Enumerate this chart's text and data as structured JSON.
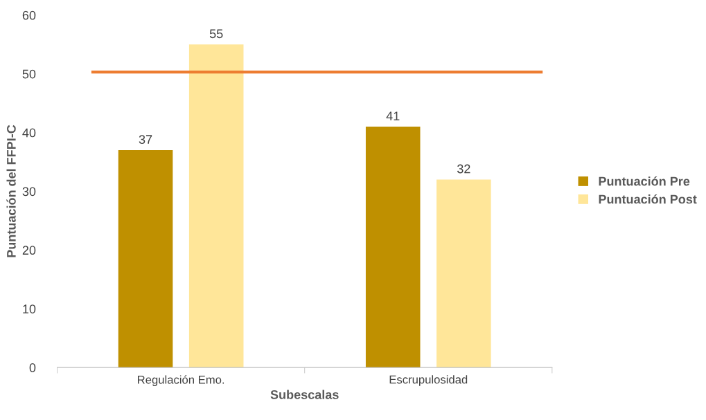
{
  "chart_data": {
    "type": "bar",
    "xlabel": "Subescalas",
    "ylabel": "Puntuación del FFPI-C",
    "categories": [
      "Regulación Emo.",
      "Escrupulosidad"
    ],
    "series": [
      {
        "name": "Puntuación Pre",
        "color": "#bf9000",
        "values": [
          37,
          41
        ]
      },
      {
        "name": "Puntuación Post",
        "color": "#ffe699",
        "values": [
          55,
          32
        ]
      }
    ],
    "ylim": [
      0,
      60
    ],
    "yticks": [
      0,
      10,
      20,
      30,
      40,
      50,
      60
    ],
    "ref_lines": [
      {
        "axis": "y",
        "value": 50.3,
        "color": "#ed7d31"
      }
    ],
    "data_labels": true,
    "legend": "right",
    "grid": false
  }
}
